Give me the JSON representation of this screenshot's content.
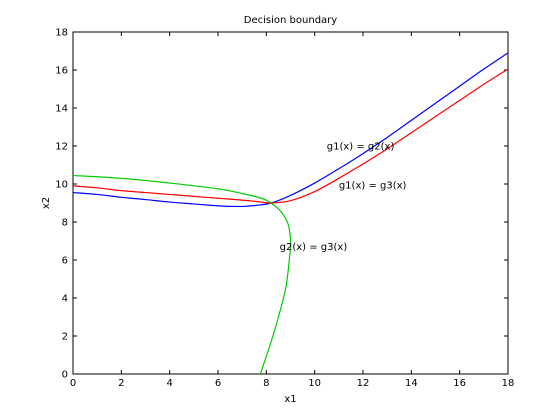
{
  "chart_data": {
    "type": "line",
    "title": "Decision boundary",
    "xlabel": "x1",
    "ylabel": "x2",
    "xlim": [
      0,
      18
    ],
    "ylim": [
      0,
      18
    ],
    "xticks": [
      0,
      2,
      4,
      6,
      8,
      10,
      12,
      14,
      16,
      18
    ],
    "yticks": [
      0,
      2,
      4,
      6,
      8,
      10,
      12,
      14,
      16,
      18
    ],
    "grid": false,
    "series": [
      {
        "color": "#0000ff",
        "x": [
          0,
          1,
          2,
          3,
          4,
          5,
          6,
          7,
          7.6,
          8.2,
          9,
          10,
          11,
          12,
          13,
          14,
          15,
          16,
          17,
          18
        ],
        "y": [
          9.55,
          9.45,
          9.3,
          9.18,
          9.05,
          8.95,
          8.85,
          8.82,
          8.88,
          9.0,
          9.4,
          10.05,
          10.8,
          11.6,
          12.45,
          13.35,
          14.25,
          15.15,
          16.05,
          16.9
        ]
      },
      {
        "color": "#ff0000",
        "x": [
          0,
          1,
          2,
          3,
          4,
          5,
          6,
          7,
          7.6,
          8.2,
          9,
          10,
          11,
          12,
          13,
          14,
          15,
          16,
          17,
          18
        ],
        "y": [
          9.9,
          9.8,
          9.65,
          9.55,
          9.45,
          9.35,
          9.25,
          9.15,
          9.08,
          9.0,
          9.12,
          9.6,
          10.3,
          11.05,
          11.85,
          12.7,
          13.55,
          14.4,
          15.25,
          16.05
        ]
      },
      {
        "color": "#00cc00",
        "x": [
          0,
          2,
          4,
          6,
          7,
          7.8,
          8.2,
          8.6,
          8.9,
          9.0,
          8.95,
          8.8,
          8.5,
          8.15,
          7.75
        ],
        "y": [
          10.45,
          10.3,
          10.05,
          9.75,
          9.5,
          9.25,
          9.0,
          8.55,
          7.9,
          7.0,
          6.0,
          4.5,
          3.0,
          1.5,
          0.0
        ]
      }
    ],
    "annotations": [
      {
        "text": "g1(x) = g2(x)",
        "x": 10.5,
        "y": 12.0
      },
      {
        "text": "g1(x) = g3(x)",
        "x": 11.0,
        "y": 9.95
      },
      {
        "text": "g2(x) = g3(x)",
        "x": 8.55,
        "y": 6.7
      }
    ]
  }
}
